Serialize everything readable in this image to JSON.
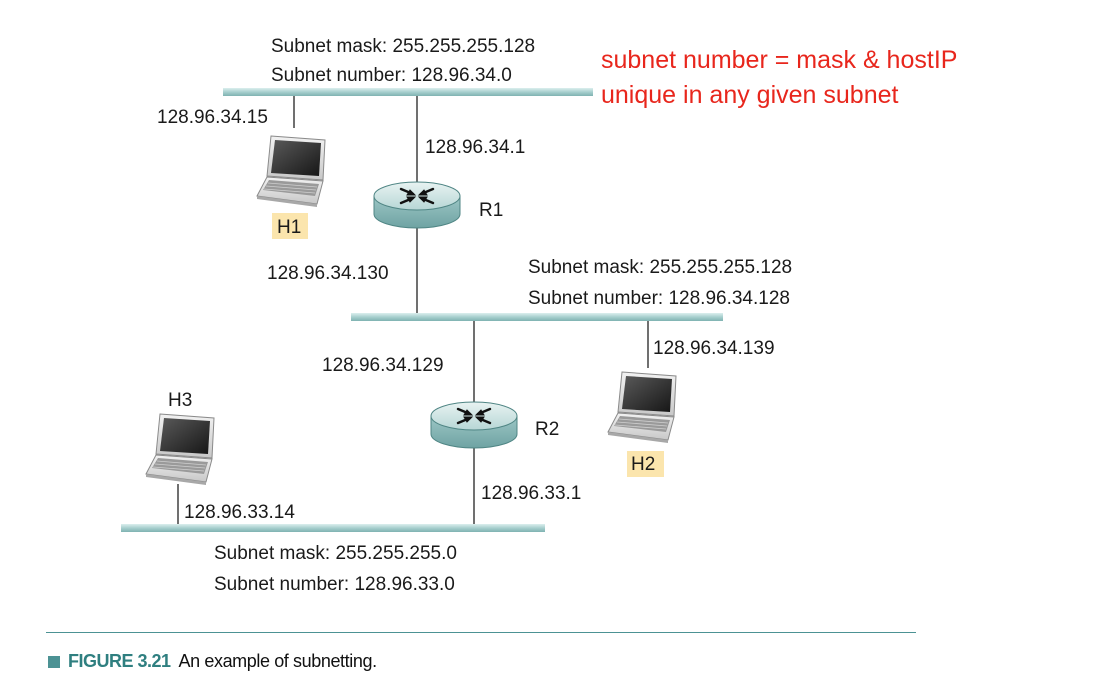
{
  "note": {
    "line1": "subnet number = mask & hostIP",
    "line2": "unique in any given subnet",
    "color": "#e8261c"
  },
  "subnets": {
    "top": {
      "mask": "Subnet mask: 255.255.255.128",
      "number": "Subnet number: 128.96.34.0"
    },
    "middle": {
      "mask": "Subnet mask: 255.255.255.128",
      "number": "Subnet number: 128.96.34.128"
    },
    "bottom": {
      "mask": "Subnet mask: 255.255.255.0",
      "number": "Subnet number: 128.96.33.0"
    }
  },
  "addresses": {
    "h1": "128.96.34.15",
    "r1_top": "128.96.34.1",
    "r1_bottom": "128.96.34.130",
    "r2_top": "128.96.34.129",
    "h2": "128.96.34.139",
    "r2_bottom": "128.96.33.1",
    "h3": "128.96.33.14"
  },
  "routers": {
    "r1": "R1",
    "r2": "R2"
  },
  "hosts": {
    "h1": "H1",
    "h2": "H2",
    "h3": "H3"
  },
  "caption": {
    "figure": "FIGURE 3.21",
    "text": "An example of subnetting."
  },
  "colors": {
    "network_bar": "#a7cfce",
    "router_body": "#8fbcbc",
    "host_label_bg": "#fbe5ad",
    "caption_accent": "#4c9294"
  },
  "icons": {
    "router": "router-icon",
    "host": "laptop-icon"
  }
}
